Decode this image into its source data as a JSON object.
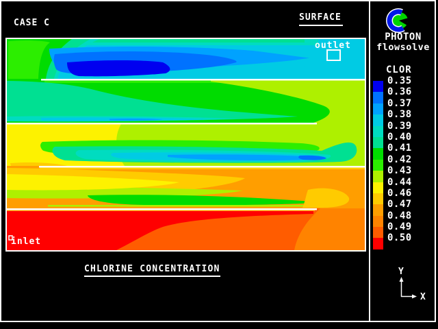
{
  "window": {
    "background": "#000000",
    "frame_color": "#ffffff"
  },
  "header": {
    "case_label": "CASE C",
    "surface_label": "SURFACE"
  },
  "brand": {
    "name": "PHOTON",
    "subtitle": "flowsolve",
    "logo_colors": {
      "blue": "#0018e8",
      "green": "#00d400",
      "white": "#ffffff"
    }
  },
  "legend": {
    "title": "CLOR",
    "entries": [
      {
        "value": "0.35",
        "color": "#0000f0"
      },
      {
        "value": "0.36",
        "color": "#0072ff"
      },
      {
        "value": "0.37",
        "color": "#00a2ff"
      },
      {
        "value": "0.38",
        "color": "#00cbe4"
      },
      {
        "value": "0.39",
        "color": "#00dcc0"
      },
      {
        "value": "0.40",
        "color": "#00e092"
      },
      {
        "value": "0.41",
        "color": "#00dc00"
      },
      {
        "value": "0.42",
        "color": "#2cee00"
      },
      {
        "value": "0.43",
        "color": "#aef000"
      },
      {
        "value": "0.44",
        "color": "#fdf200"
      },
      {
        "value": "0.46",
        "color": "#ffcb00"
      },
      {
        "value": "0.47",
        "color": "#ff9e00"
      },
      {
        "value": "0.48",
        "color": "#ff8300"
      },
      {
        "value": "0.49",
        "color": "#ff5c00"
      },
      {
        "value": "0.50",
        "color": "#ff0000"
      }
    ]
  },
  "plot": {
    "outlet_label": "outlet",
    "inlet_label": "inlet",
    "caption": "CHLORINE CONCENTRATION"
  },
  "axis": {
    "x_label": "X",
    "y_label": "Y"
  },
  "palette": {
    "c35": "#0000f0",
    "c36": "#0072ff",
    "c37": "#00a2ff",
    "c38": "#00cbe4",
    "c39": "#00dcc0",
    "c40": "#00e092",
    "c41": "#00dc00",
    "c42": "#2cee00",
    "c43": "#aef000",
    "c44": "#fdf200",
    "c46": "#ffcb00",
    "c47": "#ff9e00",
    "c48": "#ff8300",
    "c49": "#ff5c00",
    "c50": "#ff0000"
  }
}
